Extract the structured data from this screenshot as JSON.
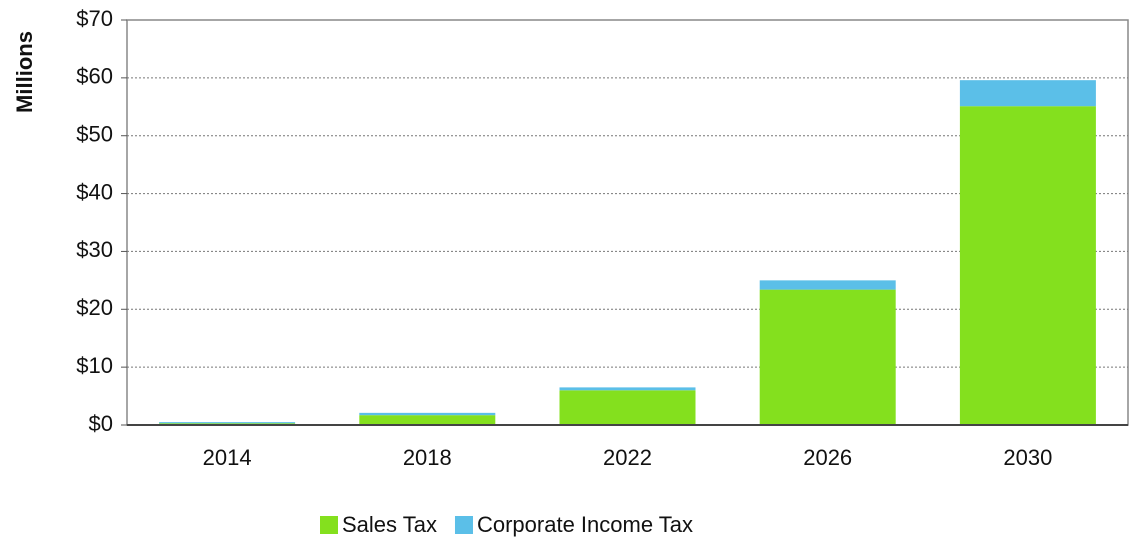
{
  "chart_data": {
    "type": "bar",
    "stacked": true,
    "y_label": "Millions",
    "categories": [
      "2014",
      "2018",
      "2022",
      "2026",
      "2030"
    ],
    "series": [
      {
        "name": "Sales Tax",
        "color": "#84e01e",
        "values": [
          0.3,
          1.7,
          6.0,
          23.4,
          55.1
        ]
      },
      {
        "name": "Corporate Income Tax",
        "color": "#5bbfe8",
        "values": [
          0.2,
          0.4,
          0.5,
          1.6,
          4.5
        ]
      }
    ],
    "ylim": [
      0,
      70
    ],
    "yticks": [
      {
        "value": 0,
        "label": "$0"
      },
      {
        "value": 10,
        "label": "$10"
      },
      {
        "value": 20,
        "label": "$20"
      },
      {
        "value": 30,
        "label": "$30"
      },
      {
        "value": 40,
        "label": "$40"
      },
      {
        "value": 50,
        "label": "$50"
      },
      {
        "value": 60,
        "label": "$60"
      },
      {
        "value": 70,
        "label": "$70"
      }
    ],
    "grid": true,
    "legend": "bottom"
  }
}
